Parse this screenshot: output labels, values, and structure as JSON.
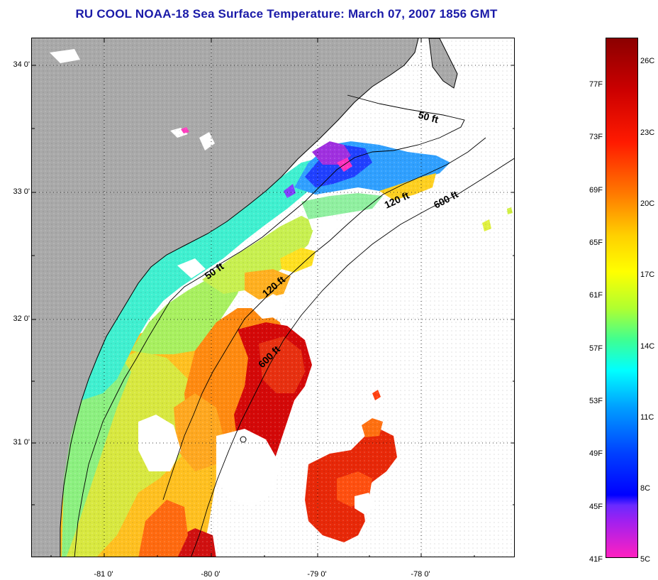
{
  "title": "RU COOL  NOAA-18  Sea Surface Temperature:  March 07, 2007 1856 GMT",
  "map": {
    "lat_labels": [
      "34 0'",
      "33 0'",
      "32 0'",
      "31 0'"
    ],
    "lon_labels": [
      "-81 0'",
      "-80 0'",
      "-79 0'",
      "-78 0'"
    ],
    "contour_labels": [
      "50 ft",
      "120 ft",
      "600 ft",
      "50 ft",
      "120 ft",
      "600 ft"
    ],
    "colors": {
      "land": "#a9a9a9",
      "grid": "#000000",
      "coast": "#000000"
    }
  },
  "colorbar": {
    "fahrenheit": [
      "77F",
      "73F",
      "69F",
      "65F",
      "61F",
      "57F",
      "53F",
      "49F",
      "45F",
      "41F"
    ],
    "celsius": [
      "26C",
      "23C",
      "20C",
      "17C",
      "14C",
      "11C",
      "8C",
      "5C"
    ]
  }
}
